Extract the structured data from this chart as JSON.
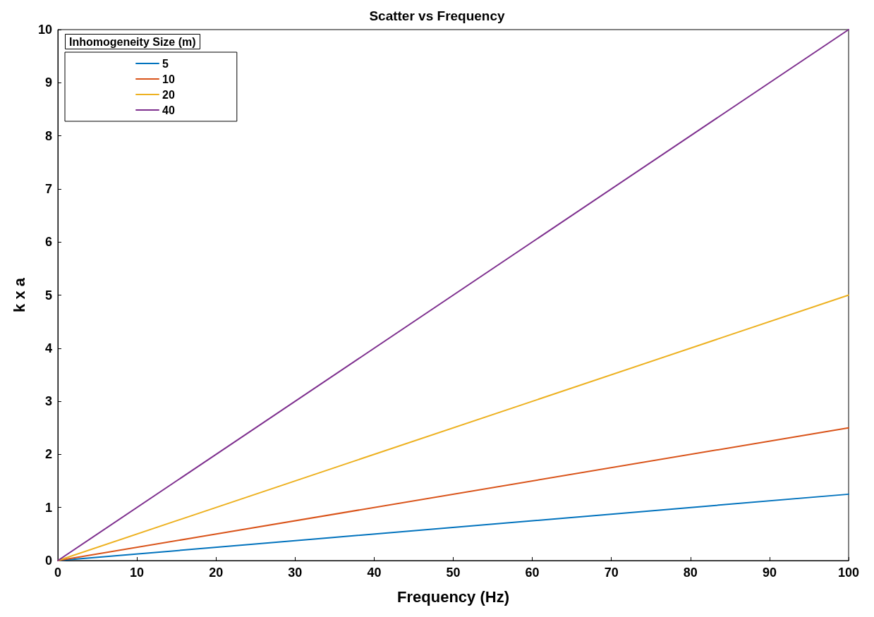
{
  "chart_data": {
    "type": "line",
    "title": "Scatter vs Frequency",
    "xlabel": "Frequency (Hz)",
    "ylabel": "k x a",
    "legend_title": "Inhomogeneity Size (m)",
    "legend": "top left",
    "marker": "none",
    "line_style": "solid",
    "grid": false,
    "xlim": [
      0,
      100
    ],
    "xticks": [
      0,
      10,
      20,
      30,
      40,
      50,
      60,
      70,
      80,
      90,
      100
    ],
    "ylim": [
      0,
      10
    ],
    "yticks": [
      0,
      1,
      2,
      3,
      4,
      5,
      6,
      7,
      8,
      9,
      10
    ],
    "x": [
      0,
      100
    ],
    "series": [
      {
        "name": "5",
        "color": "#0072bd",
        "values": [
          0,
          1.25
        ]
      },
      {
        "name": "10",
        "color": "#d95319",
        "values": [
          0,
          2.5
        ]
      },
      {
        "name": "20",
        "color": "#edb120",
        "values": [
          0,
          5
        ]
      },
      {
        "name": "40",
        "color": "#7e2f8e",
        "values": [
          0,
          10
        ]
      }
    ]
  }
}
